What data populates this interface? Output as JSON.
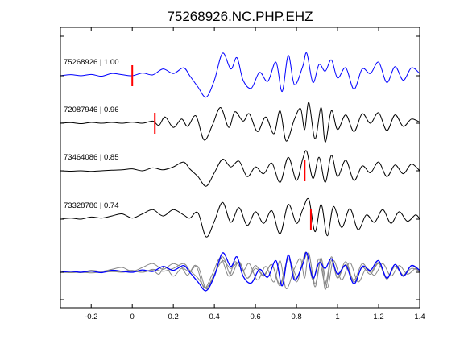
{
  "chart_data": {
    "type": "line",
    "title": "75268926.NC.PHP.EHZ",
    "xlabel": "",
    "ylabel": "",
    "xlim": [
      -0.35,
      1.4
    ],
    "xticks": [
      -0.2,
      0,
      0.2,
      0.4,
      0.6,
      0.8,
      1,
      1.2,
      1.4
    ],
    "xtick_labels": [
      "-0.2",
      "0",
      "0.2",
      "0.4",
      "0.6",
      "0.8",
      "1",
      "1.2",
      "1.4"
    ],
    "grid": false,
    "colors": {
      "reference": "#0000ff",
      "trace": "#000000",
      "overlay": "#888888",
      "pick": "#ff0000"
    },
    "series": [
      {
        "label": "75268926 | 1.00",
        "color": "#0000ff",
        "pick_x": 0.0,
        "points": [
          [
            -0.35,
            0.0
          ],
          [
            -0.3,
            0.05
          ],
          [
            -0.25,
            0.0
          ],
          [
            -0.2,
            0.06
          ],
          [
            -0.15,
            -0.02
          ],
          [
            -0.1,
            0.1
          ],
          [
            -0.05,
            0.05
          ],
          [
            0.0,
            0.0
          ],
          [
            0.05,
            0.12
          ],
          [
            0.1,
            0.04
          ],
          [
            0.15,
            0.3
          ],
          [
            0.2,
            0.1
          ],
          [
            0.25,
            0.35
          ],
          [
            0.28,
            0.0
          ],
          [
            0.32,
            -0.5
          ],
          [
            0.36,
            -0.95
          ],
          [
            0.4,
            -0.2
          ],
          [
            0.44,
            1.0
          ],
          [
            0.48,
            0.3
          ],
          [
            0.51,
            0.8
          ],
          [
            0.54,
            -0.2
          ],
          [
            0.58,
            -0.55
          ],
          [
            0.62,
            0.15
          ],
          [
            0.66,
            -0.25
          ],
          [
            0.7,
            0.6
          ],
          [
            0.73,
            -0.7
          ],
          [
            0.76,
            0.9
          ],
          [
            0.79,
            -0.4
          ],
          [
            0.83,
            0.4
          ],
          [
            0.85,
            1.0
          ],
          [
            0.88,
            -0.3
          ],
          [
            0.91,
            0.5
          ],
          [
            0.94,
            0.2
          ],
          [
            0.97,
            0.7
          ],
          [
            1.0,
            -0.1
          ],
          [
            1.04,
            0.35
          ],
          [
            1.08,
            -0.6
          ],
          [
            1.12,
            0.3
          ],
          [
            1.16,
            0.1
          ],
          [
            1.2,
            0.6
          ],
          [
            1.24,
            -0.3
          ],
          [
            1.28,
            0.4
          ],
          [
            1.32,
            -0.2
          ],
          [
            1.36,
            0.35
          ],
          [
            1.4,
            0.1
          ]
        ]
      },
      {
        "label": "72087946 | 0.96",
        "color": "#000000",
        "pick_x": 0.11,
        "points": [
          [
            -0.35,
            0.0
          ],
          [
            -0.3,
            0.03
          ],
          [
            -0.25,
            -0.02
          ],
          [
            -0.2,
            0.04
          ],
          [
            -0.15,
            0.0
          ],
          [
            -0.1,
            0.04
          ],
          [
            -0.05,
            0.0
          ],
          [
            0.0,
            0.05
          ],
          [
            0.05,
            0.0
          ],
          [
            0.1,
            0.1
          ],
          [
            0.13,
            -0.1
          ],
          [
            0.16,
            0.3
          ],
          [
            0.2,
            -0.2
          ],
          [
            0.24,
            0.2
          ],
          [
            0.27,
            -0.15
          ],
          [
            0.31,
            0.35
          ],
          [
            0.35,
            -0.8
          ],
          [
            0.39,
            -0.1
          ],
          [
            0.43,
            0.75
          ],
          [
            0.47,
            -0.2
          ],
          [
            0.5,
            0.55
          ],
          [
            0.54,
            0.1
          ],
          [
            0.57,
            0.45
          ],
          [
            0.61,
            -0.4
          ],
          [
            0.65,
            0.3
          ],
          [
            0.69,
            -0.5
          ],
          [
            0.72,
            0.6
          ],
          [
            0.75,
            -0.85
          ],
          [
            0.79,
            0.2
          ],
          [
            0.82,
            0.7
          ],
          [
            0.84,
            -0.3
          ],
          [
            0.86,
            1.0
          ],
          [
            0.89,
            -0.75
          ],
          [
            0.92,
            0.75
          ],
          [
            0.94,
            -0.9
          ],
          [
            0.97,
            0.6
          ],
          [
            1.0,
            -0.3
          ],
          [
            1.04,
            0.4
          ],
          [
            1.08,
            -0.4
          ],
          [
            1.12,
            0.45
          ],
          [
            1.16,
            0.0
          ],
          [
            1.2,
            0.5
          ],
          [
            1.24,
            -0.35
          ],
          [
            1.28,
            0.4
          ],
          [
            1.32,
            -0.15
          ],
          [
            1.36,
            0.2
          ],
          [
            1.4,
            0.05
          ]
        ]
      },
      {
        "label": "73464086 | 0.85",
        "color": "#000000",
        "pick_x": 0.84,
        "points": [
          [
            -0.35,
            0.0
          ],
          [
            -0.3,
            -0.02
          ],
          [
            -0.25,
            0.0
          ],
          [
            -0.2,
            -0.03
          ],
          [
            -0.15,
            0.0
          ],
          [
            -0.1,
            0.03
          ],
          [
            -0.05,
            0.05
          ],
          [
            0.0,
            0.1
          ],
          [
            0.05,
            0.0
          ],
          [
            0.1,
            0.15
          ],
          [
            0.15,
            0.05
          ],
          [
            0.2,
            0.2
          ],
          [
            0.25,
            0.45
          ],
          [
            0.28,
            0.1
          ],
          [
            0.32,
            -0.3
          ],
          [
            0.36,
            -0.8
          ],
          [
            0.4,
            -0.1
          ],
          [
            0.44,
            0.6
          ],
          [
            0.48,
            0.2
          ],
          [
            0.52,
            0.5
          ],
          [
            0.56,
            -0.3
          ],
          [
            0.6,
            0.2
          ],
          [
            0.64,
            -0.15
          ],
          [
            0.68,
            0.4
          ],
          [
            0.72,
            -0.6
          ],
          [
            0.76,
            0.7
          ],
          [
            0.8,
            -0.5
          ],
          [
            0.83,
            0.6
          ],
          [
            0.85,
            1.0
          ],
          [
            0.88,
            -0.4
          ],
          [
            0.91,
            0.7
          ],
          [
            0.94,
            -0.6
          ],
          [
            0.97,
            0.8
          ],
          [
            1.0,
            -0.3
          ],
          [
            1.04,
            0.55
          ],
          [
            1.08,
            -0.5
          ],
          [
            1.12,
            0.25
          ],
          [
            1.16,
            -0.1
          ],
          [
            1.2,
            0.45
          ],
          [
            1.24,
            -0.3
          ],
          [
            1.28,
            0.3
          ],
          [
            1.32,
            -0.15
          ],
          [
            1.36,
            0.35
          ],
          [
            1.4,
            0.0
          ]
        ]
      },
      {
        "label": "73328786 | 0.74",
        "color": "#000000",
        "pick_x": 0.87,
        "points": [
          [
            -0.35,
            0.0
          ],
          [
            -0.3,
            0.05
          ],
          [
            -0.25,
            0.0
          ],
          [
            -0.2,
            0.1
          ],
          [
            -0.15,
            0.05
          ],
          [
            -0.1,
            0.15
          ],
          [
            -0.05,
            0.25
          ],
          [
            0.0,
            0.05
          ],
          [
            0.05,
            0.25
          ],
          [
            0.1,
            0.45
          ],
          [
            0.15,
            0.15
          ],
          [
            0.2,
            0.45
          ],
          [
            0.25,
            0.2
          ],
          [
            0.28,
            0.05
          ],
          [
            0.32,
            0.3
          ],
          [
            0.36,
            -0.85
          ],
          [
            0.4,
            -0.1
          ],
          [
            0.44,
            0.8
          ],
          [
            0.48,
            -0.15
          ],
          [
            0.52,
            0.55
          ],
          [
            0.56,
            -0.3
          ],
          [
            0.6,
            0.35
          ],
          [
            0.64,
            -0.2
          ],
          [
            0.68,
            0.4
          ],
          [
            0.72,
            -0.7
          ],
          [
            0.76,
            0.7
          ],
          [
            0.8,
            -0.2
          ],
          [
            0.83,
            0.45
          ],
          [
            0.86,
            0.95
          ],
          [
            0.89,
            -0.6
          ],
          [
            0.92,
            0.7
          ],
          [
            0.95,
            -0.8
          ],
          [
            0.98,
            0.6
          ],
          [
            1.02,
            -0.4
          ],
          [
            1.06,
            0.5
          ],
          [
            1.1,
            -0.5
          ],
          [
            1.14,
            0.2
          ],
          [
            1.18,
            -0.15
          ],
          [
            1.22,
            0.45
          ],
          [
            1.26,
            -0.2
          ],
          [
            1.3,
            0.35
          ],
          [
            1.34,
            -0.1
          ],
          [
            1.38,
            0.2
          ],
          [
            1.4,
            0.0
          ]
        ]
      }
    ]
  }
}
